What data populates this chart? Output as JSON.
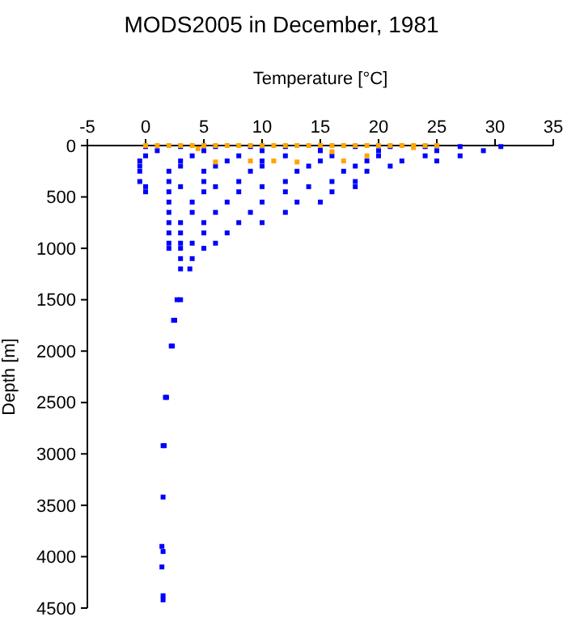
{
  "chart_data": {
    "type": "scatter",
    "title": "MODS2005 in December, 1981",
    "xlabel": "Temperature [°C]",
    "ylabel": "Depth [m]",
    "xlim": [
      -5,
      35
    ],
    "xticks": [
      -5,
      0,
      5,
      10,
      15,
      20,
      25,
      30,
      35
    ],
    "ylim": [
      4500,
      0
    ],
    "yticks": [
      0,
      500,
      1000,
      1500,
      2000,
      2500,
      3000,
      3500,
      4000,
      4500
    ],
    "marker": "square",
    "grid": false,
    "series": [
      {
        "color": "#0000ff",
        "x": [
          0,
          3,
          6,
          9,
          12,
          15,
          18,
          21,
          24,
          27,
          30.5,
          1,
          5,
          10,
          15,
          20,
          25,
          29,
          0,
          4,
          8,
          12,
          16,
          20,
          24,
          27,
          -0.5,
          3,
          7,
          10,
          15,
          19,
          22,
          25,
          -0.5,
          3,
          6,
          10,
          14,
          18,
          21,
          -0.5,
          2,
          5,
          9,
          13,
          17,
          19,
          -0.5,
          2,
          5,
          8,
          12,
          16,
          18,
          0,
          3,
          6,
          10,
          14,
          18,
          0,
          2,
          5,
          8,
          12,
          16,
          2,
          4,
          7,
          10,
          13,
          15,
          2,
          4,
          6,
          9,
          12,
          2,
          3,
          5,
          8,
          10,
          2,
          3,
          5,
          7,
          2,
          3,
          4,
          6,
          2,
          3,
          5,
          3,
          4,
          3,
          3.8,
          3,
          2.7,
          2.5,
          2.4,
          2.3,
          2.2,
          1.8,
          1.7,
          1.6,
          1.5,
          1.5,
          1.4,
          1.5,
          1.4,
          1.5,
          1.5
        ],
        "values": [
          10,
          10,
          10,
          10,
          10,
          10,
          10,
          10,
          10,
          10,
          10,
          50,
          50,
          50,
          50,
          50,
          50,
          50,
          100,
          100,
          100,
          100,
          100,
          100,
          100,
          100,
          150,
          150,
          150,
          150,
          150,
          150,
          150,
          150,
          200,
          200,
          200,
          200,
          200,
          200,
          200,
          250,
          250,
          250,
          250,
          250,
          250,
          250,
          350,
          350,
          350,
          350,
          350,
          350,
          350,
          400,
          400,
          400,
          400,
          400,
          400,
          450,
          450,
          450,
          450,
          450,
          450,
          550,
          550,
          550,
          550,
          550,
          550,
          650,
          650,
          650,
          650,
          650,
          750,
          750,
          750,
          750,
          750,
          850,
          850,
          850,
          850,
          950,
          950,
          950,
          950,
          1000,
          1000,
          1000,
          1100,
          1100,
          1200,
          1200,
          1500,
          1500,
          1700,
          1700,
          1950,
          1950,
          2450,
          2450,
          2920,
          2920,
          3420,
          3900,
          3950,
          4100,
          4380,
          4420
        ]
      },
      {
        "color": "#ffa500",
        "x": [
          0,
          1,
          2,
          3,
          4,
          5,
          6,
          7,
          8,
          9,
          10,
          11,
          12,
          13,
          14,
          15,
          16,
          17,
          18,
          19,
          20,
          21,
          22,
          23,
          24,
          25,
          4.5,
          16,
          19,
          6,
          9,
          11,
          13,
          17,
          23
        ],
        "values": [
          0,
          0,
          0,
          0,
          0,
          0,
          0,
          0,
          0,
          0,
          0,
          0,
          0,
          0,
          0,
          0,
          0,
          0,
          0,
          0,
          0,
          0,
          0,
          0,
          0,
          0,
          30,
          60,
          100,
          160,
          150,
          150,
          160,
          150,
          20
        ]
      }
    ]
  }
}
